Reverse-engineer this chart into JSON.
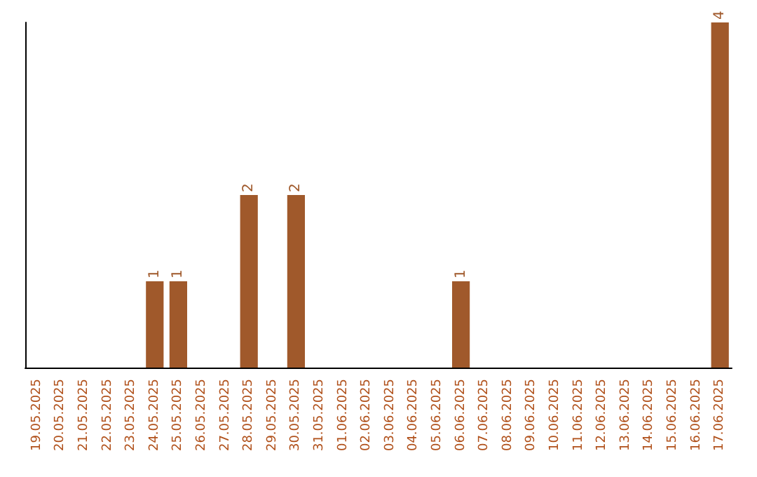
{
  "chart_data": {
    "type": "bar",
    "categories": [
      "19.05.2025",
      "20.05.2025",
      "21.05.2025",
      "22.05.2025",
      "23.05.2025",
      "24.05.2025",
      "25.05.2025",
      "26.05.2025",
      "27.05.2025",
      "28.05.2025",
      "29.05.2025",
      "30.05.2025",
      "31.05.2025",
      "01.06.2025",
      "02.06.2025",
      "03.06.2025",
      "04.06.2025",
      "05.06.2025",
      "06.06.2025",
      "07.06.2025",
      "08.06.2025",
      "09.06.2025",
      "10.06.2025",
      "11.06.2025",
      "12.06.2025",
      "13.06.2025",
      "14.06.2025",
      "15.06.2025",
      "16.06.2025",
      "17.06.2025"
    ],
    "values": [
      0,
      0,
      0,
      0,
      0,
      1,
      1,
      0,
      0,
      2,
      0,
      2,
      0,
      0,
      0,
      0,
      0,
      0,
      1,
      0,
      0,
      0,
      0,
      0,
      0,
      0,
      0,
      0,
      0,
      4
    ],
    "value_labels": [
      null,
      null,
      null,
      null,
      null,
      "1",
      "1",
      null,
      null,
      "2",
      null,
      "2",
      null,
      null,
      null,
      null,
      null,
      null,
      "1",
      null,
      null,
      null,
      null,
      null,
      null,
      null,
      null,
      null,
      null,
      "4"
    ],
    "color": "#a0592b",
    "tick_labels": "x"
  }
}
